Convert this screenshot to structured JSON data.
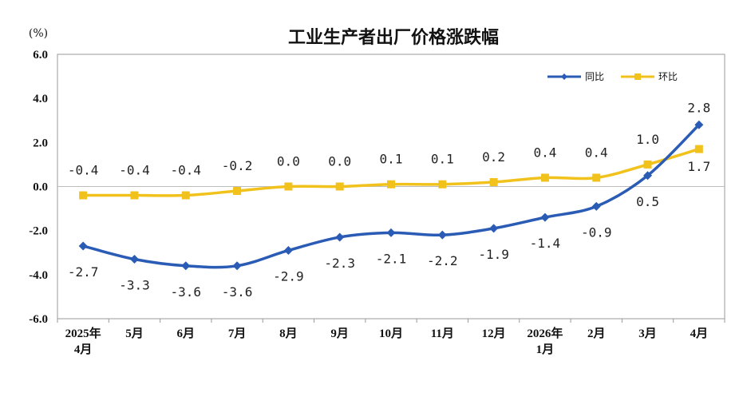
{
  "chart_data": {
    "type": "line",
    "title": "工业生产者出厂价格涨跌幅",
    "unit": "(%)",
    "categories": [
      "2025年4月",
      "5月",
      "6月",
      "7月",
      "8月",
      "9月",
      "10月",
      "11月",
      "12月",
      "2026年1月",
      "2月",
      "3月",
      "4月"
    ],
    "category_lines": [
      [
        "2025年",
        "4月"
      ],
      [
        "5月"
      ],
      [
        "6月"
      ],
      [
        "7月"
      ],
      [
        "8月"
      ],
      [
        "9月"
      ],
      [
        "10月"
      ],
      [
        "11月"
      ],
      [
        "12月"
      ],
      [
        "2026年",
        "1月"
      ],
      [
        "2月"
      ],
      [
        "3月"
      ],
      [
        "4月"
      ]
    ],
    "y_ticks": [
      "6.0",
      "4.0",
      "2.0",
      "0.0",
      "-2.0",
      "-4.0",
      "-6.0"
    ],
    "ylim": [
      -6,
      6
    ],
    "grid": false,
    "legend_position": "top-right",
    "series": [
      {
        "name": "同比",
        "color": "#2a5bb5",
        "marker": "diamond",
        "values": [
          -2.7,
          -3.3,
          -3.6,
          -3.6,
          -2.9,
          -2.3,
          -2.1,
          -2.2,
          -1.9,
          -1.4,
          -0.9,
          0.5,
          2.8
        ],
        "labels": [
          "-2.7",
          "-3.3",
          "-3.6",
          "-3.6",
          "-2.9",
          "-2.3",
          "-2.1",
          "-2.2",
          "-1.9",
          "-1.4",
          "-0.9",
          "0.5",
          "2.8"
        ]
      },
      {
        "name": "环比",
        "color": "#f2c21c",
        "marker": "square",
        "values": [
          -0.4,
          -0.4,
          -0.4,
          -0.2,
          0.0,
          0.0,
          0.1,
          0.1,
          0.2,
          0.4,
          0.4,
          1.0,
          1.7
        ],
        "labels": [
          "-0.4",
          "-0.4",
          "-0.4",
          "-0.2",
          "0.0",
          "0.0",
          "0.1",
          "0.1",
          "0.2",
          "0.4",
          "0.4",
          "1.0",
          "1.7"
        ]
      }
    ]
  }
}
